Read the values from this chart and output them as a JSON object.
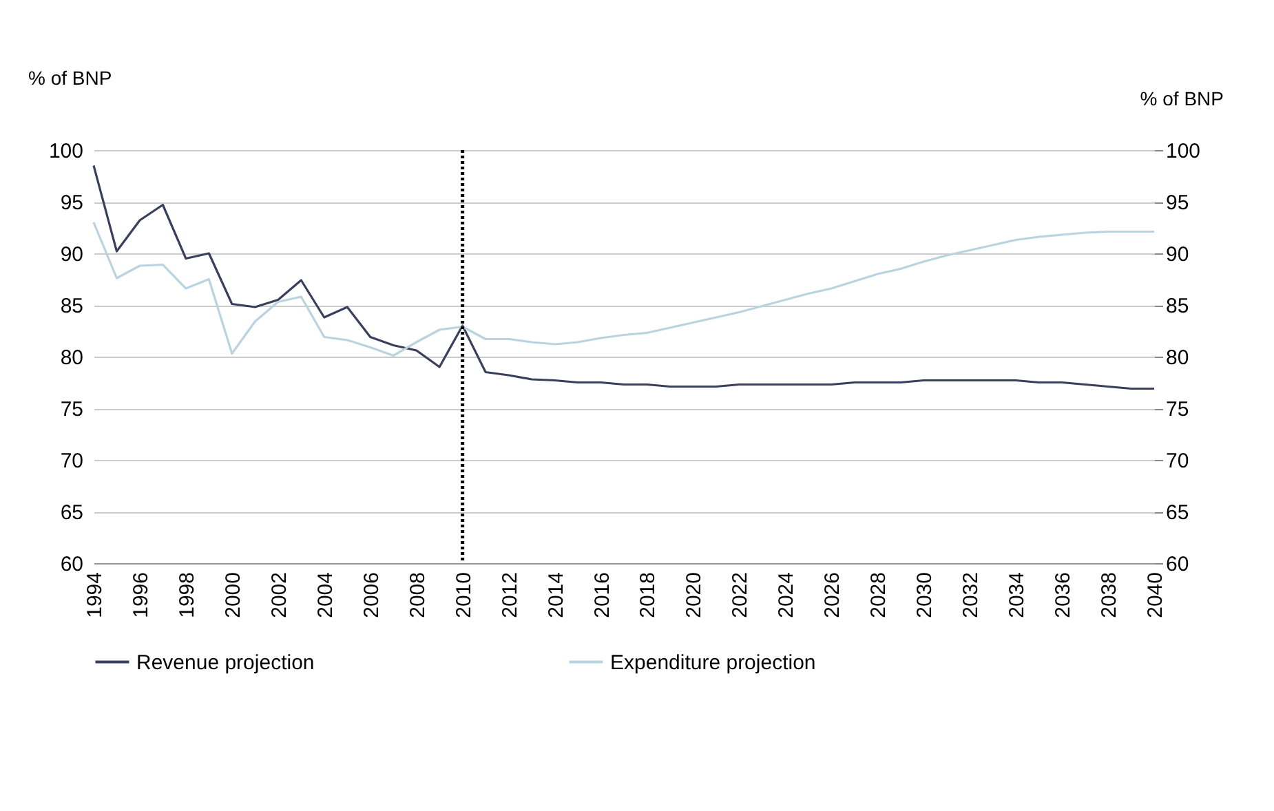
{
  "chart_data": {
    "type": "line",
    "ylabel": "% of BNP",
    "y2label": "% of BNP",
    "x": [
      1994,
      1995,
      1996,
      1997,
      1998,
      1999,
      2000,
      2001,
      2002,
      2003,
      2004,
      2005,
      2006,
      2007,
      2008,
      2009,
      2010,
      2011,
      2012,
      2013,
      2014,
      2015,
      2016,
      2017,
      2018,
      2019,
      2020,
      2021,
      2022,
      2023,
      2024,
      2025,
      2026,
      2027,
      2028,
      2029,
      2030,
      2031,
      2032,
      2033,
      2034,
      2035,
      2036,
      2037,
      2038,
      2039,
      2040
    ],
    "series": [
      {
        "name": "Revenue projection",
        "color": "#3a3f5c",
        "values": [
          98.5,
          90.2,
          93.2,
          94.7,
          89.5,
          90.0,
          85.1,
          84.8,
          85.5,
          87.4,
          83.8,
          84.8,
          81.9,
          81.1,
          80.6,
          79.0,
          83.0,
          78.5,
          78.2,
          77.8,
          77.7,
          77.5,
          77.5,
          77.3,
          77.3,
          77.1,
          77.1,
          77.1,
          77.3,
          77.3,
          77.3,
          77.3,
          77.3,
          77.5,
          77.5,
          77.5,
          77.7,
          77.7,
          77.7,
          77.7,
          77.7,
          77.5,
          77.5,
          77.3,
          77.1,
          76.9,
          76.9
        ]
      },
      {
        "name": "Expenditure projection",
        "color": "#b9d3df",
        "values": [
          93.0,
          87.6,
          88.8,
          88.9,
          86.6,
          87.5,
          80.3,
          83.4,
          85.3,
          85.8,
          81.9,
          81.6,
          80.9,
          80.1,
          81.4,
          82.6,
          82.9,
          81.7,
          81.7,
          81.4,
          81.2,
          81.4,
          81.8,
          82.1,
          82.3,
          82.8,
          83.3,
          83.8,
          84.3,
          84.9,
          85.5,
          86.1,
          86.6,
          87.3,
          88.0,
          88.5,
          89.2,
          89.8,
          90.3,
          90.8,
          91.3,
          91.6,
          91.8,
          92.0,
          92.1,
          92.1,
          92.1
        ]
      }
    ],
    "xlim": [
      1994,
      2040
    ],
    "xticks": [
      1994,
      1996,
      1998,
      2000,
      2002,
      2004,
      2006,
      2008,
      2010,
      2012,
      2014,
      2016,
      2018,
      2020,
      2022,
      2024,
      2026,
      2028,
      2030,
      2032,
      2034,
      2036,
      2038,
      2040
    ],
    "ylim": [
      60,
      100
    ],
    "yticks": [
      60,
      65,
      70,
      75,
      80,
      85,
      90,
      95,
      100
    ],
    "y2lim": [
      60,
      100
    ],
    "y2ticks": [
      60,
      65,
      70,
      75,
      80,
      85,
      90,
      95,
      100
    ],
    "ref_lines": [
      {
        "axis": "x",
        "value": 2010,
        "color": "#000000",
        "line_style": "dotted"
      }
    ],
    "grid": "y",
    "legend": "bottom",
    "marker": "none",
    "line_style": "solid"
  }
}
